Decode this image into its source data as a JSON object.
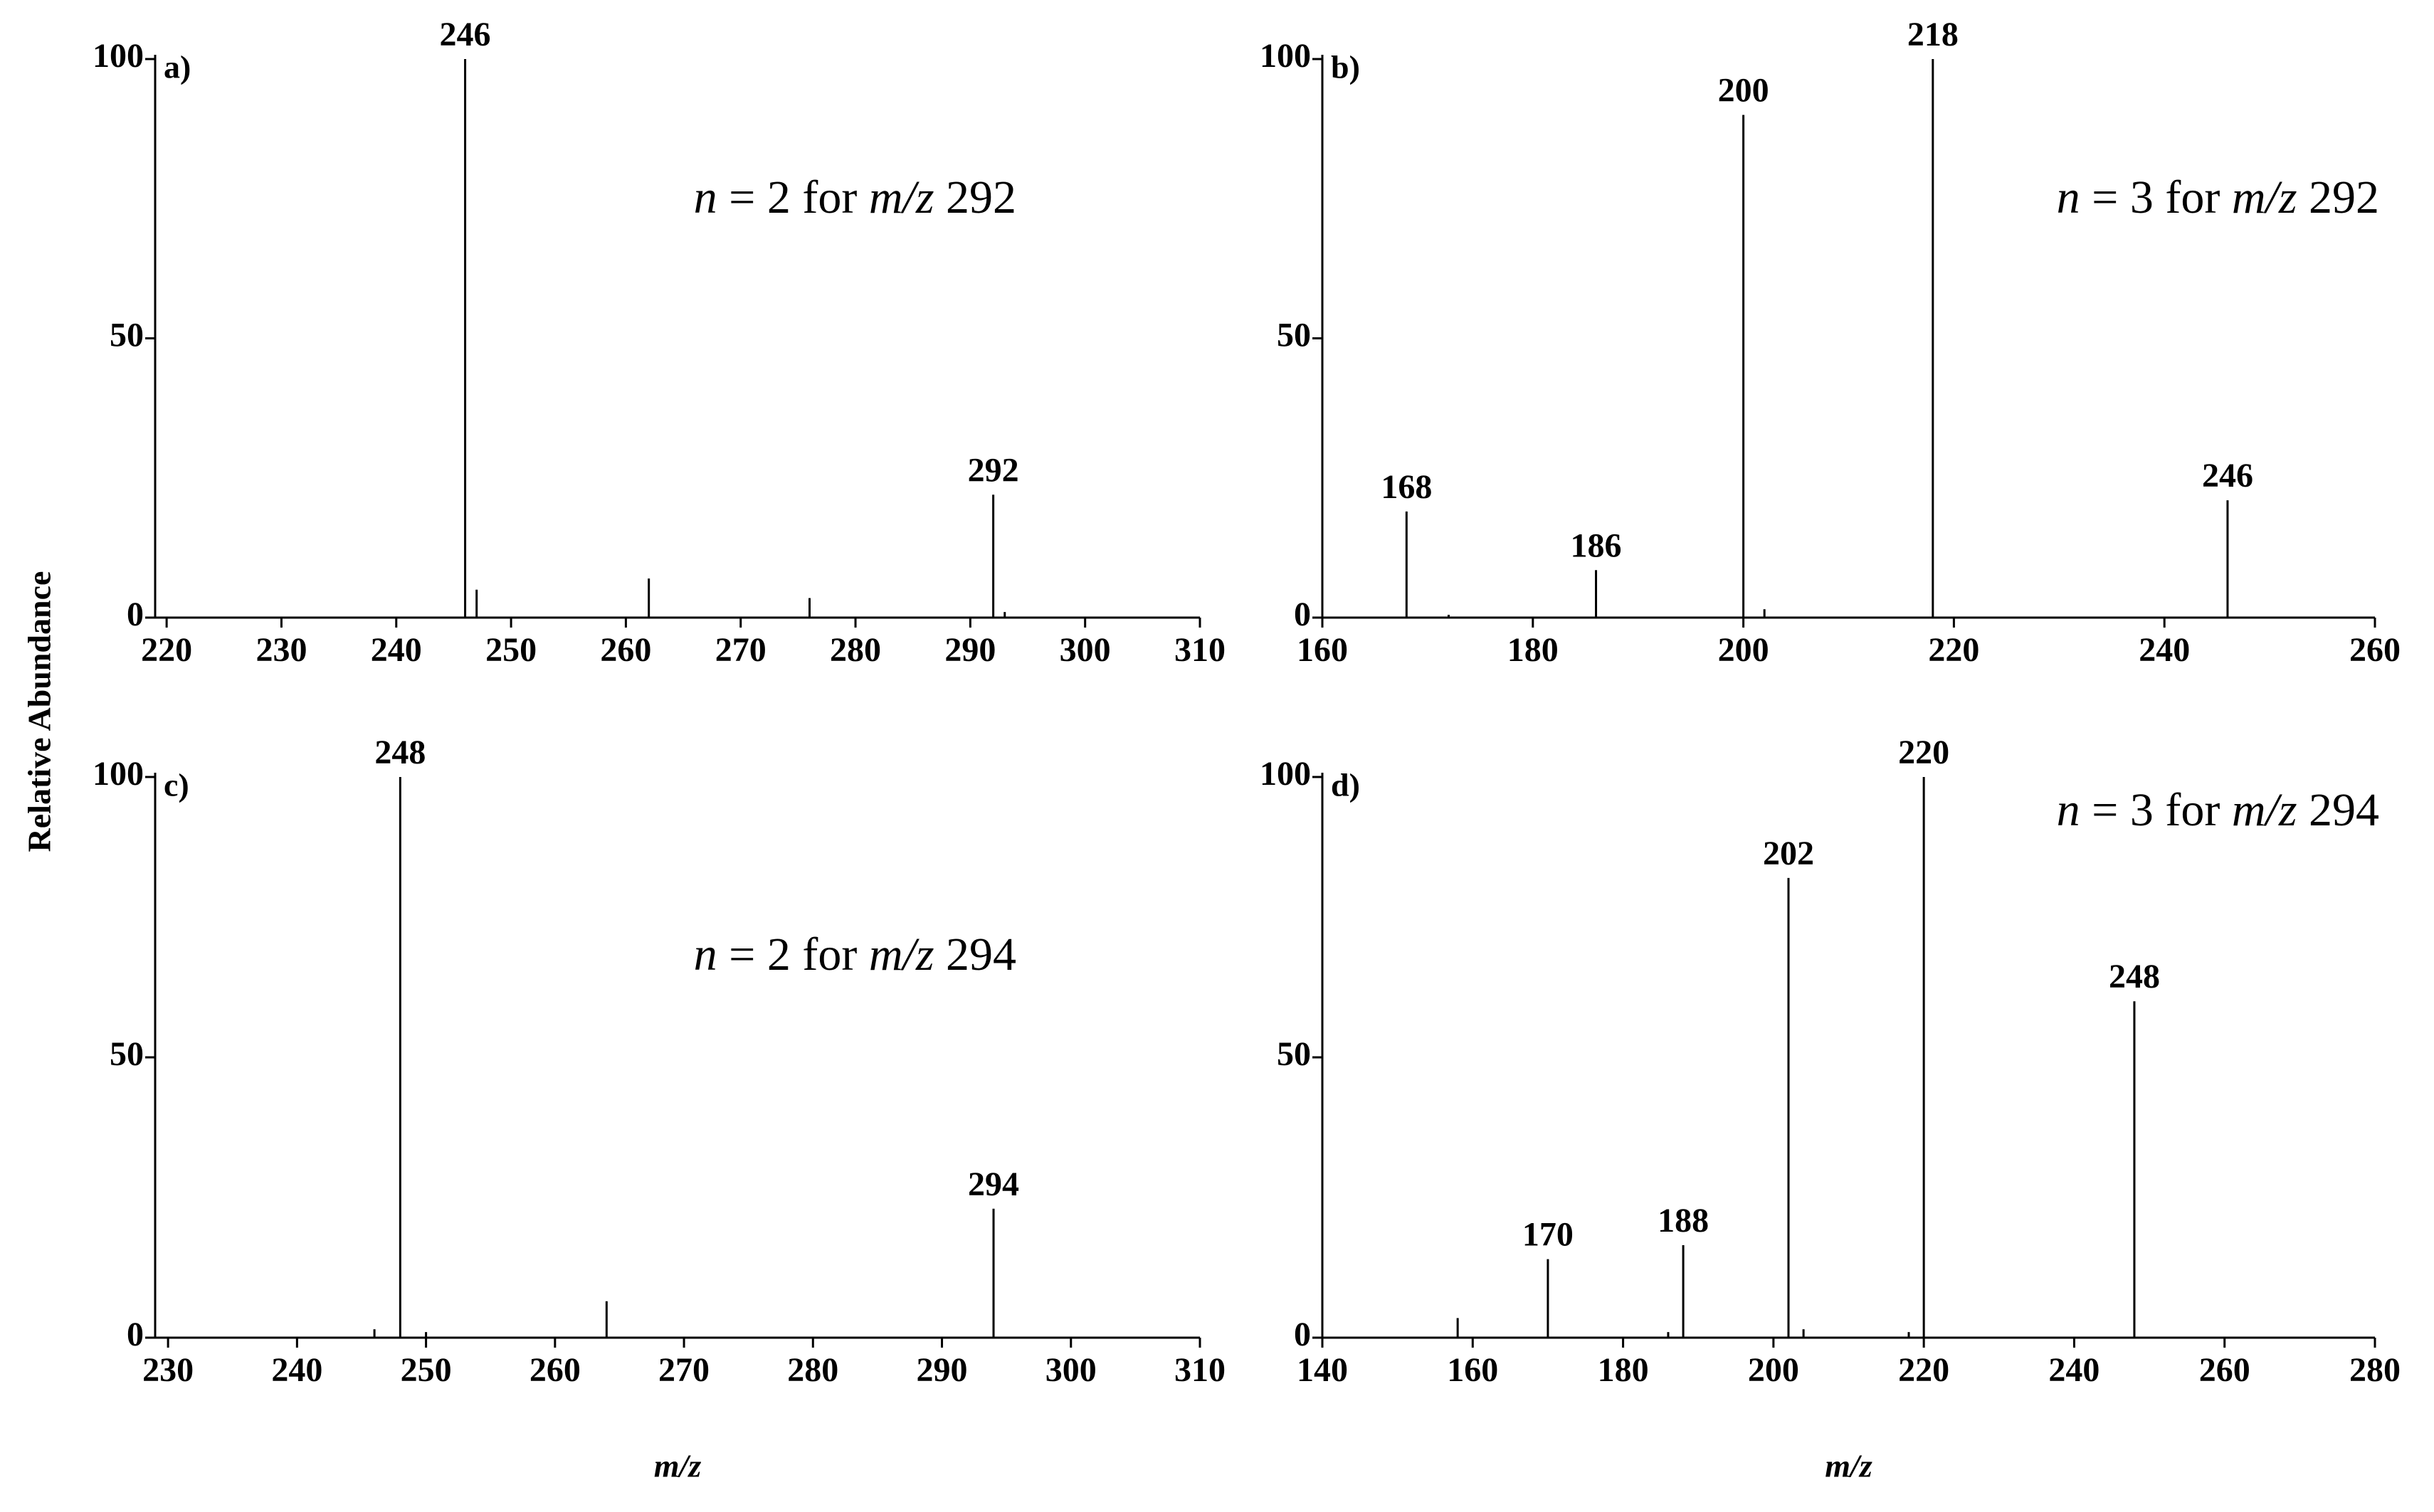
{
  "figure": {
    "y_label": "Relative Abundance"
  },
  "chart_data": [
    {
      "type": "stem",
      "panel_label": "a)",
      "color": "#000000",
      "annotation": [
        {
          "text": "n",
          "italic": true
        },
        {
          "text": " = 2 for "
        },
        {
          "text": "m/z",
          "italic": true
        },
        {
          "text": " 292"
        }
      ],
      "x": [
        246,
        292
      ],
      "values": [
        100,
        22
      ],
      "minor_x": [
        247,
        262,
        276,
        293
      ],
      "minor_values": [
        5,
        7,
        3.5,
        1
      ],
      "xlim": [
        219,
        310
      ],
      "ylim": [
        0,
        100
      ],
      "xticks": [
        220,
        230,
        240,
        250,
        260,
        270,
        280,
        290,
        300,
        310
      ],
      "yticks": [
        0,
        50,
        100
      ]
    },
    {
      "type": "stem",
      "panel_label": "b)",
      "color": "#000000",
      "annotation": [
        {
          "text": "n",
          "italic": true
        },
        {
          "text": " = 3 for "
        },
        {
          "text": "m/z",
          "italic": true
        },
        {
          "text": " 292"
        }
      ],
      "x": [
        168,
        186,
        200,
        218,
        246
      ],
      "values": [
        19,
        8.5,
        90,
        100,
        21
      ],
      "minor_x": [
        172,
        202
      ],
      "minor_values": [
        0.5,
        1.5
      ],
      "xlim": [
        160,
        260
      ],
      "ylim": [
        0,
        100
      ],
      "xticks": [
        160,
        180,
        200,
        220,
        240,
        260
      ],
      "yticks": [
        0,
        50,
        100
      ]
    },
    {
      "type": "stem",
      "panel_label": "c)",
      "color": "#000000",
      "annotation": [
        {
          "text": "n",
          "italic": true
        },
        {
          "text": " = 2 for "
        },
        {
          "text": "m/z",
          "italic": true
        },
        {
          "text": " 294"
        }
      ],
      "xlabel": "m/z",
      "x": [
        248,
        294
      ],
      "values": [
        100,
        23
      ],
      "minor_x": [
        246,
        250,
        264
      ],
      "minor_values": [
        1.5,
        1,
        6.5
      ],
      "xlim": [
        229,
        310
      ],
      "ylim": [
        0,
        100
      ],
      "xticks": [
        230,
        240,
        250,
        260,
        270,
        280,
        290,
        300,
        310
      ],
      "yticks": [
        0,
        50,
        100
      ]
    },
    {
      "type": "stem",
      "panel_label": "d)",
      "color": "#000000",
      "annotation": [
        {
          "text": "n",
          "italic": true
        },
        {
          "text": " = 3 for "
        },
        {
          "text": "m/z",
          "italic": true
        },
        {
          "text": " 294"
        }
      ],
      "xlabel": "m/z",
      "x": [
        170,
        188,
        202,
        220,
        248
      ],
      "values": [
        14,
        16.5,
        82,
        100,
        60
      ],
      "minor_x": [
        158,
        186,
        204,
        218
      ],
      "minor_values": [
        3.5,
        1,
        1.5,
        1
      ],
      "xlim": [
        140,
        280
      ],
      "ylim": [
        0,
        100
      ],
      "xticks": [
        140,
        160,
        180,
        200,
        220,
        240,
        260,
        280
      ],
      "yticks": [
        0,
        50,
        100
      ]
    }
  ]
}
